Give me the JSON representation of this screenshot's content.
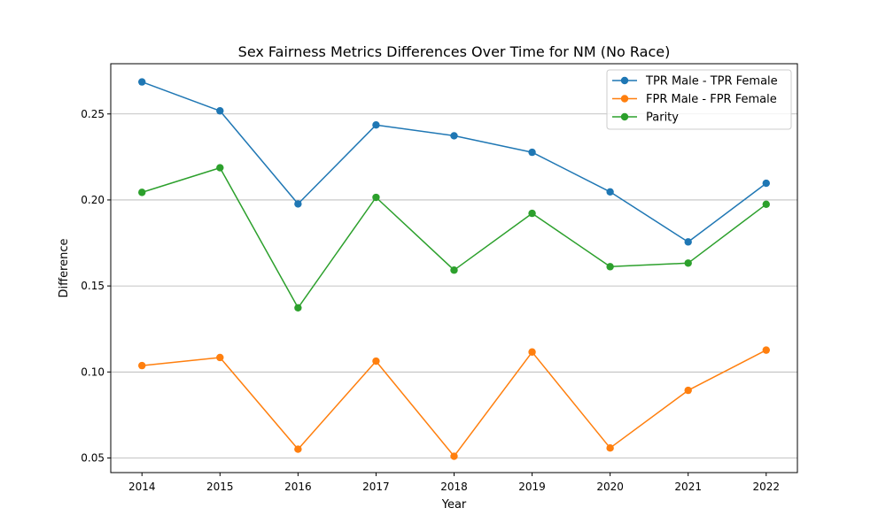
{
  "chart_data": {
    "type": "line",
    "title": "Sex Fairness Metrics Differences Over Time for NM (No Race)",
    "xlabel": "Year",
    "ylabel": "Difference",
    "x": [
      2014,
      2015,
      2016,
      2017,
      2018,
      2019,
      2020,
      2021,
      2022
    ],
    "xlim": [
      2013.6,
      2022.4
    ],
    "ylim": [
      0.0415,
      0.2792
    ],
    "yticks": [
      0.05,
      0.1,
      0.15,
      0.2,
      0.25
    ],
    "ytick_labels": [
      "0.05",
      "0.10",
      "0.15",
      "0.20",
      "0.25"
    ],
    "grid": "horizontal",
    "legend_position": "top-right",
    "series": [
      {
        "name": "TPR Male - TPR Female",
        "color": "#1f77b4",
        "values": [
          0.2686,
          0.2518,
          0.1977,
          0.2436,
          0.2373,
          0.2277,
          0.2047,
          0.1756,
          0.2097
        ]
      },
      {
        "name": "FPR Male - FPR Female",
        "color": "#ff7f0e",
        "values": [
          0.1037,
          0.1084,
          0.0551,
          0.1063,
          0.051,
          0.1116,
          0.0558,
          0.0893,
          0.1127
        ]
      },
      {
        "name": "Parity",
        "color": "#2ca02c",
        "values": [
          0.2044,
          0.2187,
          0.1373,
          0.2015,
          0.1592,
          0.1922,
          0.1612,
          0.1633,
          0.1975
        ]
      }
    ]
  }
}
